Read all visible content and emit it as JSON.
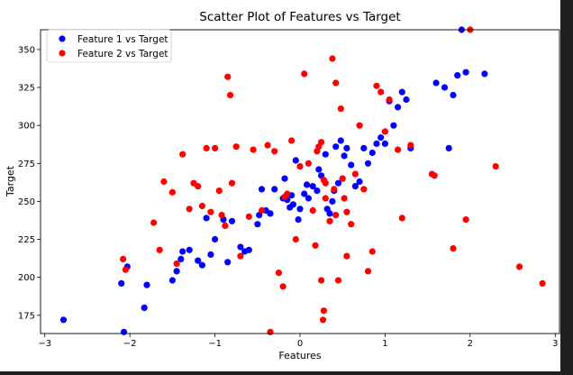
{
  "chart_data": {
    "type": "scatter",
    "title": "Scatter Plot of Features vs Target",
    "xlabel": "Features",
    "ylabel": "Target",
    "xlim": [
      -3.05,
      3.05
    ],
    "ylim": [
      163,
      363
    ],
    "xticks": [
      -3,
      -2,
      -1,
      0,
      1,
      2,
      3
    ],
    "yticks": [
      175,
      200,
      225,
      250,
      275,
      300,
      325,
      350
    ],
    "grid": false,
    "legend_position": "top-left",
    "series": [
      {
        "name": "Feature 1 vs Target",
        "color": "#0000ff",
        "points": [
          [
            -2.78,
            172
          ],
          [
            -2.1,
            196
          ],
          [
            -2.07,
            164
          ],
          [
            -2.03,
            207
          ],
          [
            -1.83,
            180
          ],
          [
            -1.8,
            195
          ],
          [
            -1.5,
            198
          ],
          [
            -1.45,
            204
          ],
          [
            -1.4,
            212
          ],
          [
            -1.38,
            217
          ],
          [
            -1.3,
            218
          ],
          [
            -1.2,
            211
          ],
          [
            -1.15,
            208
          ],
          [
            -1.1,
            239
          ],
          [
            -1.05,
            215
          ],
          [
            -1.0,
            225
          ],
          [
            -0.9,
            238
          ],
          [
            -0.85,
            210
          ],
          [
            -0.8,
            237
          ],
          [
            -0.7,
            220
          ],
          [
            -0.65,
            217
          ],
          [
            -0.6,
            218
          ],
          [
            -0.5,
            235
          ],
          [
            -0.48,
            241
          ],
          [
            -0.45,
            258
          ],
          [
            -0.4,
            244
          ],
          [
            -0.35,
            242
          ],
          [
            -0.3,
            258
          ],
          [
            -0.2,
            252
          ],
          [
            -0.18,
            265
          ],
          [
            -0.15,
            251
          ],
          [
            -0.12,
            246
          ],
          [
            -0.1,
            254
          ],
          [
            -0.08,
            248
          ],
          [
            -0.05,
            277
          ],
          [
            -0.02,
            238
          ],
          [
            0.0,
            245
          ],
          [
            0.05,
            255
          ],
          [
            0.08,
            261
          ],
          [
            0.1,
            252
          ],
          [
            0.15,
            260
          ],
          [
            0.2,
            257
          ],
          [
            0.22,
            271
          ],
          [
            0.25,
            267
          ],
          [
            0.3,
            281
          ],
          [
            0.32,
            245
          ],
          [
            0.35,
            242
          ],
          [
            0.38,
            250
          ],
          [
            0.4,
            257
          ],
          [
            0.42,
            286
          ],
          [
            0.45,
            262
          ],
          [
            0.48,
            290
          ],
          [
            0.5,
            265
          ],
          [
            0.52,
            280
          ],
          [
            0.55,
            285
          ],
          [
            0.6,
            274
          ],
          [
            0.65,
            260
          ],
          [
            0.7,
            263
          ],
          [
            0.75,
            285
          ],
          [
            0.8,
            275
          ],
          [
            0.85,
            282
          ],
          [
            0.9,
            288
          ],
          [
            0.95,
            292
          ],
          [
            1.0,
            288
          ],
          [
            1.05,
            316
          ],
          [
            1.1,
            300
          ],
          [
            1.15,
            312
          ],
          [
            1.2,
            322
          ],
          [
            1.25,
            317
          ],
          [
            1.3,
            285
          ],
          [
            1.6,
            328
          ],
          [
            1.7,
            325
          ],
          [
            1.75,
            285
          ],
          [
            1.8,
            320
          ],
          [
            1.85,
            333
          ],
          [
            1.9,
            363
          ],
          [
            1.95,
            335
          ],
          [
            2.17,
            334
          ]
        ]
      },
      {
        "name": "Feature 2 vs Target",
        "color": "#ff0000",
        "points": [
          [
            -2.08,
            212
          ],
          [
            -2.05,
            205
          ],
          [
            -1.72,
            236
          ],
          [
            -1.65,
            218
          ],
          [
            -1.6,
            263
          ],
          [
            -1.5,
            256
          ],
          [
            -1.45,
            209
          ],
          [
            -1.38,
            281
          ],
          [
            -1.3,
            245
          ],
          [
            -1.25,
            262
          ],
          [
            -1.2,
            260
          ],
          [
            -1.15,
            247
          ],
          [
            -1.1,
            285
          ],
          [
            -1.05,
            243
          ],
          [
            -1.0,
            285
          ],
          [
            -0.95,
            257
          ],
          [
            -0.92,
            241
          ],
          [
            -0.88,
            234
          ],
          [
            -0.85,
            332
          ],
          [
            -0.82,
            320
          ],
          [
            -0.8,
            262
          ],
          [
            -0.75,
            286
          ],
          [
            -0.7,
            214
          ],
          [
            -0.6,
            240
          ],
          [
            -0.55,
            284
          ],
          [
            -0.45,
            244
          ],
          [
            -0.38,
            287
          ],
          [
            -0.35,
            164
          ],
          [
            -0.3,
            283
          ],
          [
            -0.25,
            203
          ],
          [
            -0.2,
            194
          ],
          [
            -0.18,
            253
          ],
          [
            -0.15,
            255
          ],
          [
            -0.1,
            290
          ],
          [
            -0.05,
            225
          ],
          [
            0.0,
            273
          ],
          [
            0.05,
            334
          ],
          [
            0.1,
            275
          ],
          [
            0.15,
            244
          ],
          [
            0.2,
            283
          ],
          [
            0.22,
            286
          ],
          [
            0.25,
            289
          ],
          [
            0.28,
            264
          ],
          [
            0.3,
            262
          ],
          [
            0.35,
            237
          ],
          [
            0.38,
            344
          ],
          [
            0.4,
            258
          ],
          [
            0.42,
            328
          ],
          [
            0.45,
            198
          ],
          [
            0.48,
            311
          ],
          [
            0.5,
            265
          ],
          [
            0.52,
            252
          ],
          [
            0.55,
            243
          ],
          [
            0.6,
            235
          ],
          [
            0.65,
            268
          ],
          [
            0.7,
            300
          ],
          [
            0.75,
            258
          ],
          [
            0.8,
            204
          ],
          [
            0.85,
            217
          ],
          [
            0.9,
            326
          ],
          [
            0.95,
            322
          ],
          [
            1.0,
            296
          ],
          [
            1.05,
            317
          ],
          [
            1.15,
            284
          ],
          [
            1.2,
            239
          ],
          [
            1.3,
            287
          ],
          [
            1.55,
            268
          ],
          [
            1.58,
            267
          ],
          [
            1.8,
            219
          ],
          [
            1.95,
            238
          ],
          [
            2.0,
            363
          ],
          [
            2.3,
            273
          ],
          [
            2.58,
            207
          ],
          [
            2.85,
            196
          ],
          [
            0.25,
            198
          ],
          [
            0.28,
            178
          ],
          [
            0.27,
            172
          ],
          [
            0.55,
            214
          ],
          [
            0.18,
            221
          ],
          [
            0.42,
            241
          ],
          [
            0.3,
            252
          ]
        ]
      }
    ]
  }
}
